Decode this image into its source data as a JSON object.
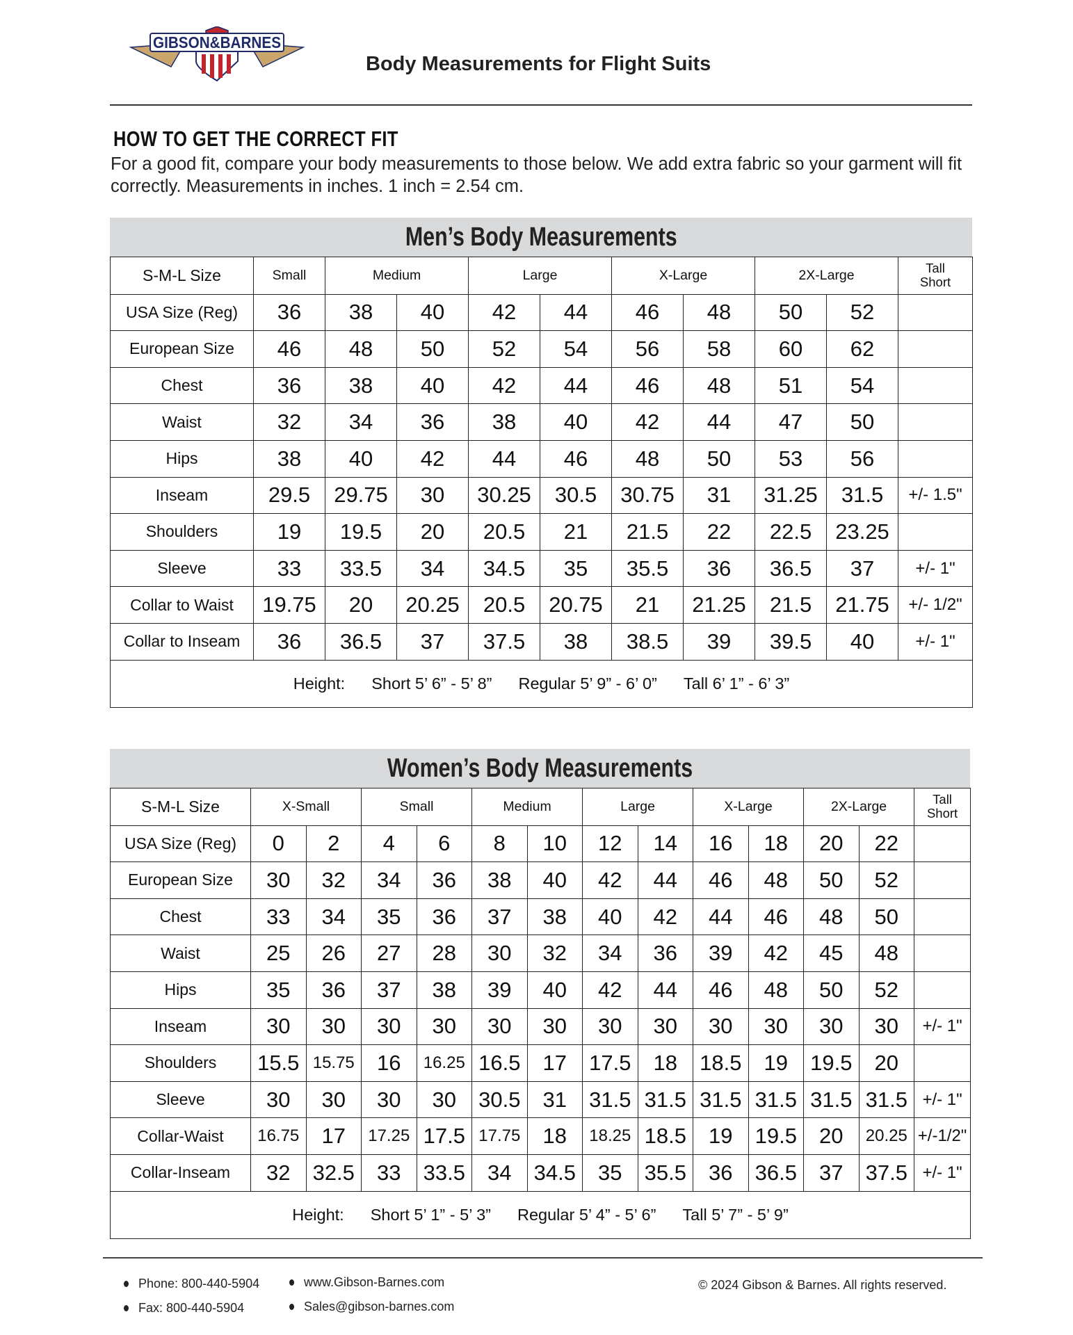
{
  "header": {
    "logo_text": "GIBSON & BARNES",
    "title": "Body Measurements for Flight Suits"
  },
  "intro": {
    "heading": "HOW TO GET THE CORRECT FIT",
    "text": "For a good fit, compare your body measurements to those below. We add extra fabric so your garment will fit correctly. Measurements in inches. 1 inch = 2.54 cm."
  },
  "men": {
    "title": "Men’s Body Measurements",
    "size_label": "S-M-L Size",
    "size_groups": [
      {
        "label": "Small",
        "span": 1
      },
      {
        "label": "Medium",
        "span": 2
      },
      {
        "label": "Large",
        "span": 2
      },
      {
        "label": "X-Large",
        "span": 2
      },
      {
        "label": "2X-Large",
        "span": 2
      }
    ],
    "tall_short_label": [
      "Tall",
      "Short"
    ],
    "rows": [
      {
        "label": "USA Size (Reg)",
        "values": [
          "36",
          "38",
          "40",
          "42",
          "44",
          "46",
          "48",
          "50",
          "52"
        ],
        "note": ""
      },
      {
        "label": "European Size",
        "values": [
          "46",
          "48",
          "50",
          "52",
          "54",
          "56",
          "58",
          "60",
          "62"
        ],
        "note": ""
      },
      {
        "label": "Chest",
        "values": [
          "36",
          "38",
          "40",
          "42",
          "44",
          "46",
          "48",
          "51",
          "54"
        ],
        "note": ""
      },
      {
        "label": "Waist",
        "values": [
          "32",
          "34",
          "36",
          "38",
          "40",
          "42",
          "44",
          "47",
          "50"
        ],
        "note": ""
      },
      {
        "label": "Hips",
        "values": [
          "38",
          "40",
          "42",
          "44",
          "46",
          "48",
          "50",
          "53",
          "56"
        ],
        "note": ""
      },
      {
        "label": "Inseam",
        "values": [
          "29.5",
          "29.75",
          "30",
          "30.25",
          "30.5",
          "30.75",
          "31",
          "31.25",
          "31.5"
        ],
        "note": "+/- 1.5\""
      },
      {
        "label": "Shoulders",
        "values": [
          "19",
          "19.5",
          "20",
          "20.5",
          "21",
          "21.5",
          "22",
          "22.5",
          "23.25"
        ],
        "note": ""
      },
      {
        "label": "Sleeve",
        "values": [
          "33",
          "33.5",
          "34",
          "34.5",
          "35",
          "35.5",
          "36",
          "36.5",
          "37"
        ],
        "note": "+/- 1\""
      },
      {
        "label": "Collar to Waist",
        "values": [
          "19.75",
          "20",
          "20.25",
          "20.5",
          "20.75",
          "21",
          "21.25",
          "21.5",
          "21.75"
        ],
        "note": "+/- 1/2\""
      },
      {
        "label": "Collar to Inseam",
        "values": [
          "36",
          "36.5",
          "37",
          "37.5",
          "38",
          "38.5",
          "39",
          "39.5",
          "40"
        ],
        "note": "+/- 1\""
      }
    ],
    "height": {
      "label": "Height:",
      "short": "Short 5’ 6” - 5’ 8”",
      "regular": "Regular  5’ 9” - 6’ 0”",
      "tall": "Tall  6’ 1” - 6’ 3”"
    }
  },
  "women": {
    "title": "Women’s Body Measurements",
    "size_label": "S-M-L Size",
    "size_groups": [
      {
        "label": "X-Small",
        "span": 2
      },
      {
        "label": "Small",
        "span": 2
      },
      {
        "label": "Medium",
        "span": 2
      },
      {
        "label": "Large",
        "span": 2
      },
      {
        "label": "X-Large",
        "span": 2
      },
      {
        "label": "2X-Large",
        "span": 2
      }
    ],
    "tall_short_label": [
      "Tall",
      "Short"
    ],
    "rows": [
      {
        "label": "USA Size (Reg)",
        "values": [
          "0",
          "2",
          "4",
          "6",
          "8",
          "10",
          "12",
          "14",
          "16",
          "18",
          "20",
          "22"
        ],
        "note": ""
      },
      {
        "label": "European Size",
        "values": [
          "30",
          "32",
          "34",
          "36",
          "38",
          "40",
          "42",
          "44",
          "46",
          "48",
          "50",
          "52"
        ],
        "note": ""
      },
      {
        "label": "Chest",
        "values": [
          "33",
          "34",
          "35",
          "36",
          "37",
          "38",
          "40",
          "42",
          "44",
          "46",
          "48",
          "50"
        ],
        "note": ""
      },
      {
        "label": "Waist",
        "values": [
          "25",
          "26",
          "27",
          "28",
          "30",
          "32",
          "34",
          "36",
          "39",
          "42",
          "45",
          "48"
        ],
        "note": ""
      },
      {
        "label": "Hips",
        "values": [
          "35",
          "36",
          "37",
          "38",
          "39",
          "40",
          "42",
          "44",
          "46",
          "48",
          "50",
          "52"
        ],
        "note": ""
      },
      {
        "label": "Inseam",
        "values": [
          "30",
          "30",
          "30",
          "30",
          "30",
          "30",
          "30",
          "30",
          "30",
          "30",
          "30",
          "30"
        ],
        "note": "+/- 1\""
      },
      {
        "label": "Shoulders",
        "values": [
          "15.5",
          "15.75",
          "16",
          "16.25",
          "16.5",
          "17",
          "17.5",
          "18",
          "18.5",
          "19",
          "19.5",
          "20"
        ],
        "note": ""
      },
      {
        "label": "Sleeve",
        "values": [
          "30",
          "30",
          "30",
          "30",
          "30.5",
          "31",
          "31.5",
          "31.5",
          "31.5",
          "31.5",
          "31.5",
          "31.5"
        ],
        "note": "+/- 1\""
      },
      {
        "label": "Collar-Waist",
        "values": [
          "16.75",
          "17",
          "17.25",
          "17.5",
          "17.75",
          "18",
          "18.25",
          "18.5",
          "19",
          "19.5",
          "20",
          "20.25"
        ],
        "note": "+/-1/2\""
      },
      {
        "label": "Collar-Inseam",
        "values": [
          "32",
          "32.5",
          "33",
          "33.5",
          "34",
          "34.5",
          "35",
          "35.5",
          "36",
          "36.5",
          "37",
          "37.5"
        ],
        "note": "+/- 1\""
      }
    ],
    "height": {
      "label": "Height:",
      "short": "Short 5’ 1” - 5’ 3”",
      "regular": "Regular  5’ 4” - 5’ 6”",
      "tall": "Tall  5’ 7” - 5’ 9”"
    }
  },
  "footer": {
    "phone": "Phone: 800-440-5904",
    "fax": "Fax: 800-440-5904",
    "website": "www.Gibson-Barnes.com",
    "email": "Sales@gibson-barnes.com",
    "copyright": "© 2024 Gibson & Barnes.  All rights reserved."
  },
  "colors": {
    "band": "#d9dadb",
    "logo_navy": "#1f2a6b",
    "logo_red": "#c0272d",
    "logo_gold": "#c9a66b"
  }
}
